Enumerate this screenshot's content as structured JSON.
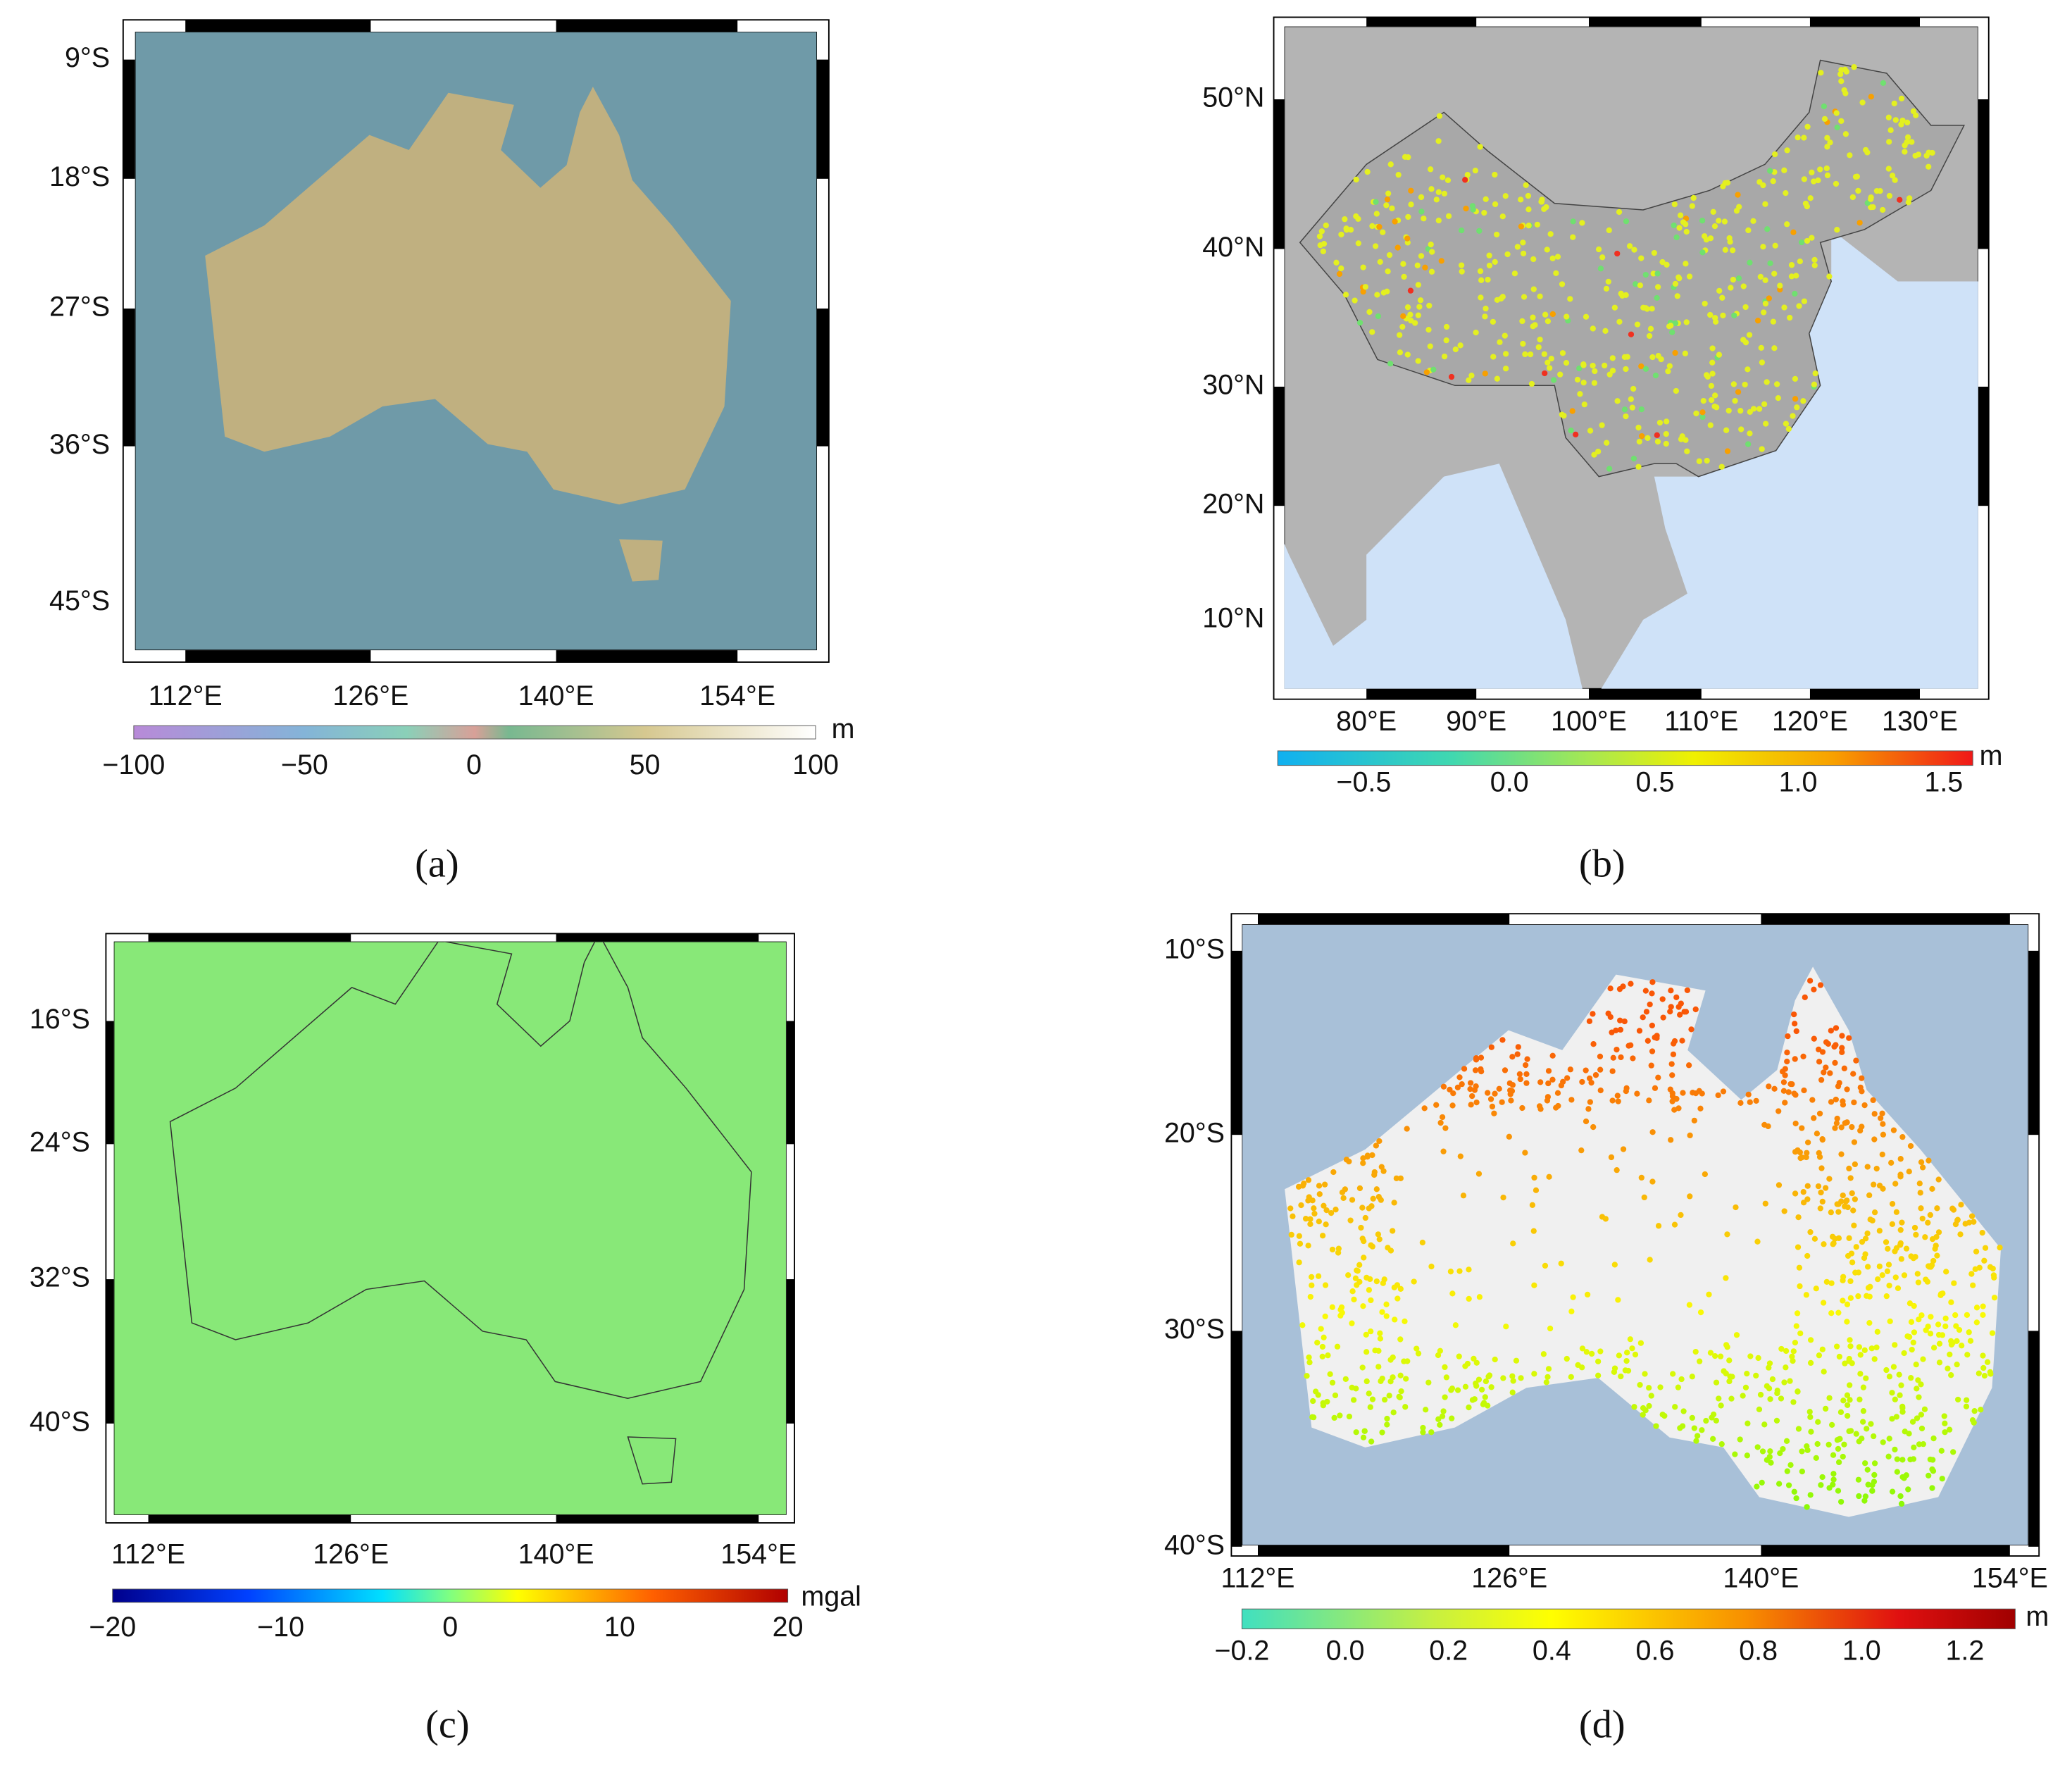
{
  "panels": [
    {
      "label": "(a)",
      "lat_labels": [
        "9°S",
        "18°S",
        "27°S",
        "36°S",
        "45°S"
      ],
      "lon_labels": [
        "112°E",
        "126°E",
        "140°E",
        "154°E"
      ],
      "colorbar": {
        "ticks": [
          "−100",
          "−50",
          "0",
          "50",
          "100"
        ],
        "unit": "m"
      }
    },
    {
      "label": "(b)",
      "lat_labels": [
        "50°N",
        "40°N",
        "30°N",
        "20°N",
        "10°N"
      ],
      "lon_labels": [
        "80°E",
        "90°E",
        "100°E",
        "110°E",
        "120°E",
        "130°E"
      ],
      "colorbar": {
        "ticks": [
          "−0.5",
          "0.0",
          "0.5",
          "1.0",
          "1.5"
        ],
        "unit": "m"
      }
    },
    {
      "label": "(c)",
      "lat_labels": [
        "16°S",
        "24°S",
        "32°S",
        "40°S"
      ],
      "lon_labels": [
        "112°E",
        "126°E",
        "140°E",
        "154°E"
      ],
      "colorbar": {
        "ticks": [
          "−20",
          "−10",
          "0",
          "10",
          "20"
        ],
        "unit": "mgal"
      }
    },
    {
      "label": "(d)",
      "lat_labels": [
        "10°S",
        "20°S",
        "30°S",
        "40°S"
      ],
      "lon_labels": [
        "112°E",
        "126°E",
        "140°E",
        "154°E"
      ],
      "colorbar": {
        "ticks": [
          "−0.2",
          "0.0",
          "0.2",
          "0.4",
          "0.6",
          "0.8",
          "1.0",
          "1.2"
        ],
        "unit": "m"
      }
    }
  ]
}
